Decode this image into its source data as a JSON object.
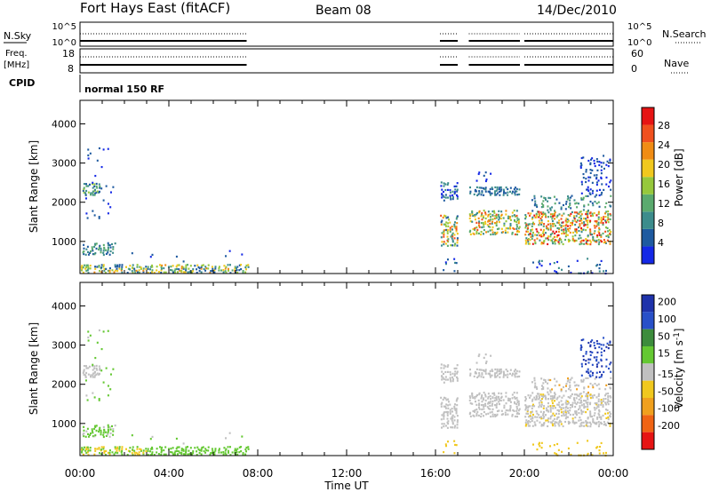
{
  "header": {
    "station": "Fort Hays East (fitACF)",
    "beam": "Beam 08",
    "date": "14/Dec/2010"
  },
  "strips": {
    "nsky_label": "N.Sky",
    "nsky_ticks": [
      "10^5",
      "10^0"
    ],
    "nsearch_ticks": [
      "10^5",
      "10^0"
    ],
    "nsearch_label": "N.Search",
    "freq_label_1": "Freq.",
    "freq_label_2": "[MHz]",
    "freq_ticks": [
      "18",
      "8"
    ],
    "nave_ticks": [
      "60",
      "0"
    ],
    "nave_label": "Nave",
    "cpid_label": "CPID",
    "cpid_text": "normal 150 RF"
  },
  "colors": {
    "power": [
      "#1428e6",
      "#1e5aa0",
      "#3c8c8c",
      "#5aaa6e",
      "#96c83c",
      "#f0c81e",
      "#f08c14",
      "#f0501e",
      "#e61414"
    ],
    "velocity_pos": [
      "#1e32aa",
      "#2850c8",
      "#3c8c3c",
      "#64c832"
    ],
    "velocity_ground": "#c0c0c0",
    "velocity_neg": [
      "#f0c81e",
      "#f0a01e",
      "#f06414",
      "#e61414"
    ]
  },
  "chart_data": [
    {
      "type": "heatmap",
      "name": "power-panel",
      "ylabel": "Slant Range [km]",
      "xlabel": "",
      "x_ticks": [
        "00:00",
        "04:00",
        "08:00",
        "12:00",
        "16:00",
        "20:00",
        "00:00"
      ],
      "y_ticks": [
        1000,
        2000,
        3000,
        4000
      ],
      "ylim": [
        180,
        4600
      ],
      "xlim_hours": [
        0,
        24
      ],
      "colorbar": {
        "label": "Power [dB]",
        "ticks": [
          "4",
          "8",
          "12",
          "16",
          "20",
          "24",
          "28"
        ],
        "range": [
          0,
          30
        ]
      }
    },
    {
      "type": "heatmap",
      "name": "velocity-panel",
      "ylabel": "Slant Range [km]",
      "xlabel": "Time UT",
      "x_ticks": [
        "00:00",
        "04:00",
        "08:00",
        "12:00",
        "16:00",
        "20:00",
        "00:00"
      ],
      "y_ticks": [
        1000,
        2000,
        3000,
        4000
      ],
      "ylim": [
        180,
        4600
      ],
      "xlim_hours": [
        0,
        24
      ],
      "colorbar": {
        "label": "Velocity [m s-1]",
        "label_main": "Velocity [m s",
        "label_sup": "-1",
        "label_end": "]",
        "ticks": [
          "200",
          "100",
          "50",
          "15",
          "-15",
          "-50",
          "-100",
          "-200"
        ],
        "range": [
          -250,
          250
        ]
      }
    }
  ]
}
